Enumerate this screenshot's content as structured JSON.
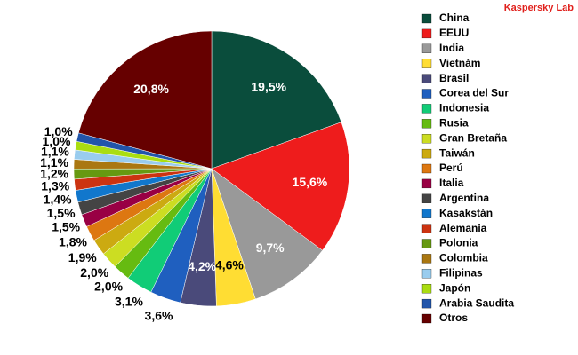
{
  "chart_data": {
    "type": "pie",
    "source": "Kaspersky Lab",
    "categories": [
      "China",
      "EEUU",
      "India",
      "Vietnám",
      "Brasil",
      "Corea del Sur",
      "Indonesia",
      "Rusia",
      "Gran Bretaña",
      "Taiwán",
      "Perú",
      "Italia",
      "Argentina",
      "Kasakstán",
      "Alemania",
      "Polonia",
      "Colombia",
      "Filipinas",
      "Japón",
      "Arabia Saudita",
      "Otros"
    ],
    "values": [
      19.5,
      15.6,
      9.7,
      4.6,
      4.2,
      3.6,
      3.1,
      2.0,
      2.0,
      1.9,
      1.8,
      1.5,
      1.5,
      1.4,
      1.3,
      1.2,
      1.1,
      1.1,
      1.0,
      1.0,
      20.8
    ],
    "value_labels": [
      "19,5%",
      "15,6%",
      "9,7%",
      "4,6%",
      "4,2%",
      "3,6%",
      "3,1%",
      "2,0%",
      "2,0%",
      "1,9%",
      "1,8%",
      "1,5%",
      "1,5%",
      "1,4%",
      "1,3%",
      "1,2%",
      "1,1%",
      "1,1%",
      "1,0%",
      "1,0%",
      "20,8%"
    ],
    "colors": [
      "#0a4d3c",
      "#ee1c1c",
      "#999999",
      "#ffdd33",
      "#4a4a7a",
      "#1f5fbf",
      "#11cc77",
      "#66bb11",
      "#ccdd22",
      "#ccaa11",
      "#dd7711",
      "#990044",
      "#444444",
      "#1177cc",
      "#cc3311",
      "#669911",
      "#aa7711",
      "#99ccee",
      "#aadd11",
      "#2255aa",
      "#660000"
    ]
  }
}
